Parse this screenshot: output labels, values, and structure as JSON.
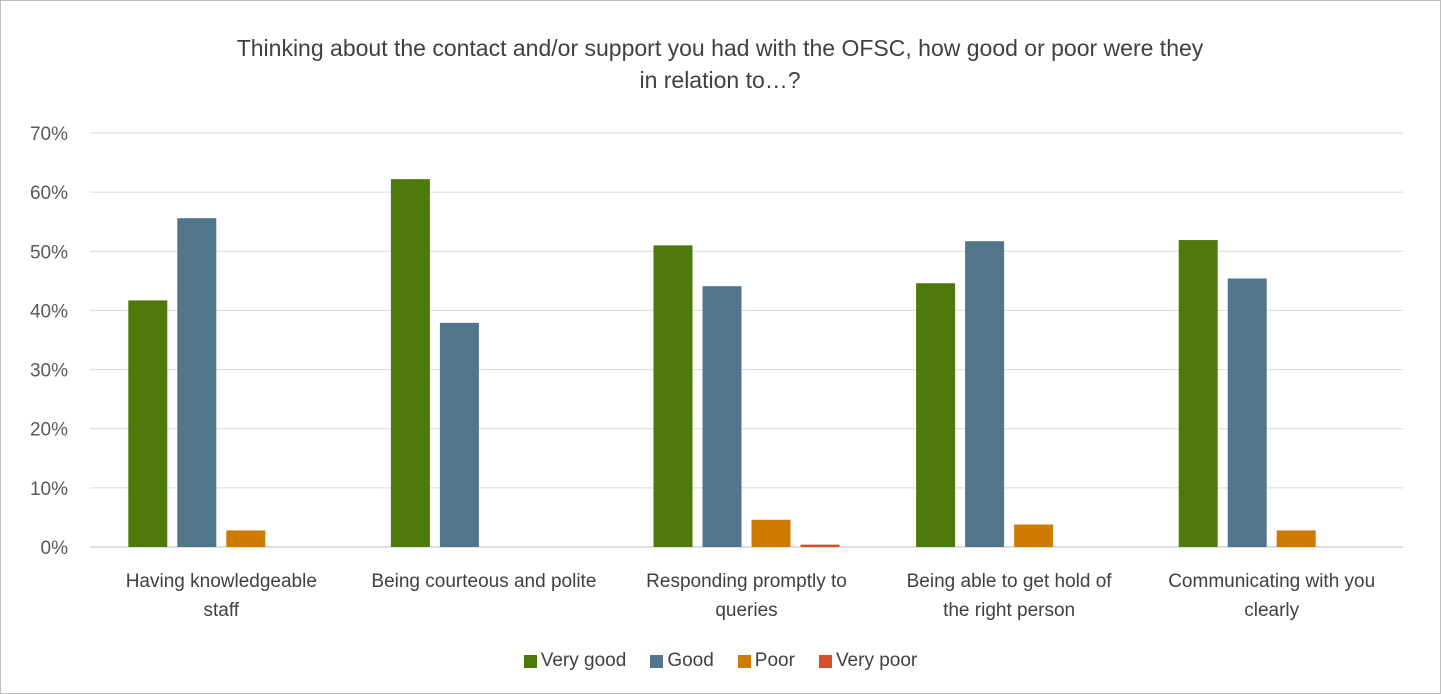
{
  "chart_data": {
    "type": "bar",
    "title": "Thinking about the contact and/or support you had with the OFSC, how good or poor were they in relation to…?",
    "title_lines": [
      "Thinking about the contact and/or support you had with the OFSC, how good or poor were they",
      "in relation to…?"
    ],
    "xlabel": "",
    "ylabel": "",
    "ylim": [
      0,
      70
    ],
    "y_ticks": [
      "0%",
      "10%",
      "20%",
      "30%",
      "40%",
      "50%",
      "60%",
      "70%"
    ],
    "grid": true,
    "legend_position": "bottom",
    "categories": [
      [
        "Having knowledgeable",
        "staff"
      ],
      [
        "Being courteous and polite"
      ],
      [
        "Responding promptly to",
        "queries"
      ],
      [
        "Being able to get hold of",
        "the right person"
      ],
      [
        "Communicating with you",
        "clearly"
      ]
    ],
    "series": [
      {
        "name": "Very good",
        "color": "#4e7a0c",
        "values": [
          41.7,
          62.2,
          51.0,
          44.6,
          51.9
        ]
      },
      {
        "name": "Good",
        "color": "#51758a",
        "values": [
          55.6,
          37.9,
          44.1,
          51.7,
          45.4
        ]
      },
      {
        "name": "Poor",
        "color": "#cc7a00",
        "values": [
          2.8,
          0,
          4.6,
          3.8,
          2.8
        ]
      },
      {
        "name": "Very poor",
        "color": "#d2502a",
        "values": [
          0,
          0,
          0.4,
          0,
          0
        ]
      }
    ]
  }
}
